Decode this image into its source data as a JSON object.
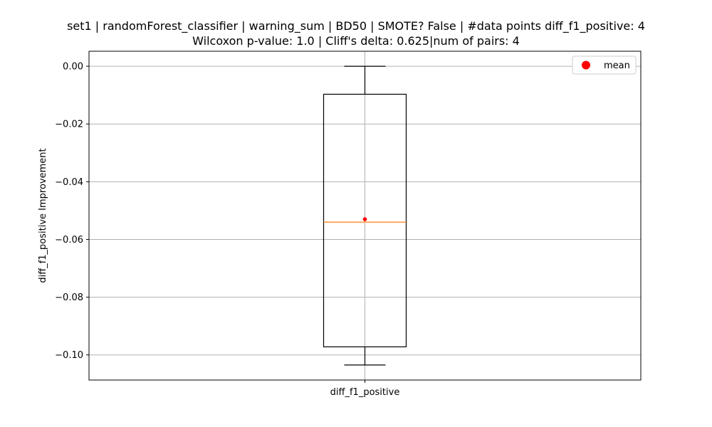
{
  "chart_data": {
    "type": "box",
    "title_lines": [
      "set1 | randomForest_classifier | warning_sum | BD50 | SMOTE? False | #data points diff_f1_positive: 4",
      "Wilcoxon p-value: 1.0 | Cliff's delta: 0.625|num of pairs: 4"
    ],
    "xlabel": "",
    "ylabel": "diff_f1_positive Improvement",
    "categories": [
      "diff_f1_positive"
    ],
    "box": {
      "whisker_low": -0.1035,
      "q1": -0.0972,
      "median": -0.054,
      "q3": -0.0097,
      "whisker_high": 0.0,
      "mean": -0.053
    },
    "ylim": [
      -0.1087,
      0.0052
    ],
    "yticks": [
      0.0,
      -0.02,
      -0.04,
      -0.06,
      -0.08,
      -0.1
    ],
    "ytick_labels": [
      "0.00",
      "−0.02",
      "−0.04",
      "−0.06",
      "−0.08",
      "−0.10"
    ],
    "grid": true,
    "legend": {
      "position": "top-right",
      "entries": [
        "mean"
      ]
    },
    "colors": {
      "box": "#000000",
      "median": "#ff7f0e",
      "mean": "#ff0000",
      "grid": "#b0b0b0"
    }
  }
}
